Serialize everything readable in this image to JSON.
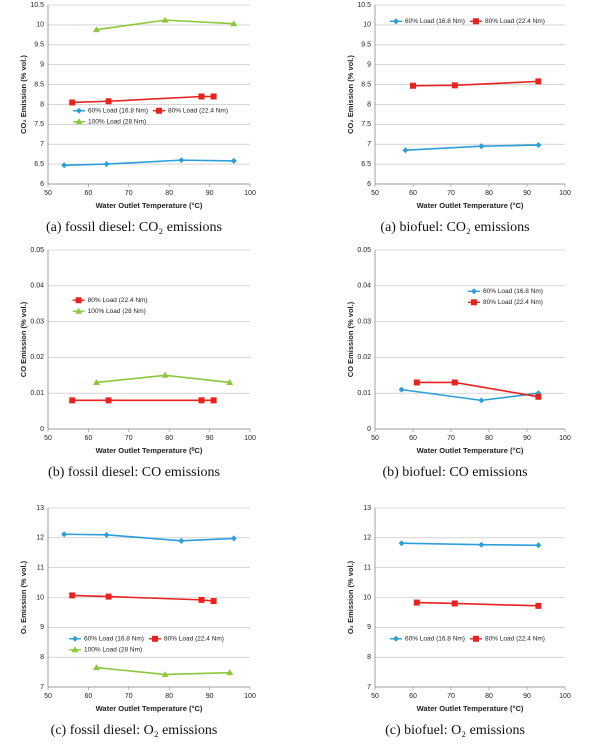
{
  "chart_data": [
    {
      "type": "line",
      "caption": "(a) fossil diesel: CO₂ emissions",
      "xlabel": "Water Outlet Temperature (°C)",
      "ylabel": "CO₂ Emission (% vol.)",
      "xlim": [
        50,
        100
      ],
      "xticks": [
        50,
        60,
        70,
        80,
        90,
        100
      ],
      "ylim": [
        6,
        10.5
      ],
      "yticks": [
        6,
        6.5,
        7,
        7.5,
        8,
        8.5,
        9,
        9.5,
        10,
        10.5
      ],
      "grid": true,
      "legend": "center",
      "legend_columns": 2,
      "series": [
        {
          "name": "60% Load (16.8 Nm)",
          "color": "#2c9fd9",
          "marker": "diamond",
          "x": [
            54,
            64.5,
            83,
            96
          ],
          "values": [
            6.47,
            6.5,
            6.6,
            6.58
          ]
        },
        {
          "name": "80% Load (22.4 Nm)",
          "color": "#e8221f",
          "marker": "square",
          "x": [
            56,
            65,
            88,
            91
          ],
          "values": [
            8.05,
            8.08,
            8.2,
            8.2
          ]
        },
        {
          "name": "100% Load (28 Nm)",
          "color": "#8cc83c",
          "marker": "triangle",
          "x": [
            62,
            79,
            96
          ],
          "values": [
            9.88,
            10.12,
            10.03
          ]
        }
      ]
    },
    {
      "type": "line",
      "caption": "(a) biofuel: CO₂ emissions",
      "xlabel": "Water Outlet Temperature (°C)",
      "ylabel": "CO₂ Emission (% vol.)",
      "xlim": [
        50,
        100
      ],
      "xticks": [
        50,
        60,
        70,
        80,
        90,
        100
      ],
      "ylim": [
        6,
        10.5
      ],
      "yticks": [
        6,
        6.5,
        7,
        7.5,
        8,
        8.5,
        9,
        9.5,
        10,
        10.5
      ],
      "grid": true,
      "legend": "upper center",
      "legend_columns": 2,
      "series": [
        {
          "name": "60% Load (16.8 Nm)",
          "color": "#2c9fd9",
          "marker": "diamond",
          "x": [
            58,
            78,
            93
          ],
          "values": [
            6.85,
            6.95,
            6.98
          ]
        },
        {
          "name": "80% Load (22.4 Nm)",
          "color": "#e8221f",
          "marker": "square",
          "x": [
            60,
            71,
            93
          ],
          "values": [
            8.47,
            8.48,
            8.58
          ]
        }
      ]
    },
    {
      "type": "line",
      "caption": "(b) fossil diesel: CO emissions",
      "xlabel": "Water Outlet Temperature (⁰C)",
      "ylabel": "CO Emission (% vol.)",
      "xlim": [
        50,
        100
      ],
      "xticks": [
        50,
        60,
        70,
        80,
        90,
        100
      ],
      "ylim": [
        0,
        0.05
      ],
      "yticks": [
        0,
        0.01,
        0.02,
        0.03,
        0.04,
        0.05
      ],
      "grid": true,
      "legend": "upper left",
      "legend_columns": 1,
      "series": [
        {
          "name": "80% Load (22.4 Nm)",
          "color": "#e8221f",
          "marker": "square",
          "x": [
            56,
            65,
            88,
            91
          ],
          "values": [
            0.008,
            0.008,
            0.008,
            0.008
          ]
        },
        {
          "name": "100% Load (28 Nm)",
          "color": "#8cc83c",
          "marker": "triangle",
          "x": [
            62,
            79,
            95
          ],
          "values": [
            0.013,
            0.015,
            0.013
          ]
        }
      ]
    },
    {
      "type": "line",
      "caption": "(b) biofuel: CO emissions",
      "xlabel": "Water Outlet Temperature (°C)",
      "ylabel": "CO Emission (% vol.)",
      "xlim": [
        50,
        100
      ],
      "xticks": [
        50,
        60,
        70,
        80,
        90,
        100
      ],
      "ylim": [
        0,
        0.05
      ],
      "yticks": [
        0,
        0.01,
        0.02,
        0.03,
        0.04,
        0.05
      ],
      "grid": true,
      "legend": "upper right",
      "legend_columns": 1,
      "series": [
        {
          "name": "60% Load (16.8 Nm)",
          "color": "#2c9fd9",
          "marker": "diamond",
          "x": [
            57,
            78,
            93
          ],
          "values": [
            0.011,
            0.008,
            0.01
          ]
        },
        {
          "name": "80% Load (22.4 Nm)",
          "color": "#e8221f",
          "marker": "square",
          "x": [
            61,
            71,
            93
          ],
          "values": [
            0.013,
            0.013,
            0.009
          ]
        }
      ]
    },
    {
      "type": "line",
      "caption": "(c) fossil diesel:  O₂ emissions",
      "xlabel": "Water Outlet Temperature (°C)",
      "ylabel": "O₂ Emission (% vol.)",
      "xlim": [
        50,
        100
      ],
      "xticks": [
        50,
        60,
        70,
        80,
        90,
        100
      ],
      "ylim": [
        7,
        13
      ],
      "yticks": [
        7,
        8,
        9,
        10,
        11,
        12,
        13
      ],
      "grid": true,
      "legend": "lower center",
      "legend_columns": 2,
      "series": [
        {
          "name": "60% Load (16.8 Nm)",
          "color": "#2c9fd9",
          "marker": "diamond",
          "x": [
            54,
            64.5,
            83,
            96
          ],
          "values": [
            12.12,
            12.1,
            11.9,
            11.98
          ]
        },
        {
          "name": "80% Load (22.4 Nm)",
          "color": "#e8221f",
          "marker": "square",
          "x": [
            56,
            65,
            88,
            91
          ],
          "values": [
            10.07,
            10.03,
            9.92,
            9.88
          ]
        },
        {
          "name": "100% Load (28 Nm)",
          "color": "#8cc83c",
          "marker": "triangle",
          "x": [
            62,
            79,
            95
          ],
          "values": [
            7.65,
            7.42,
            7.48
          ]
        }
      ]
    },
    {
      "type": "line",
      "caption": "(c) biofuel: O₂ emissions",
      "xlabel": "Water Outlet Temperature (°C)",
      "ylabel": "O₂ Emission (% vol.)",
      "xlim": [
        50,
        100
      ],
      "xticks": [
        50,
        60,
        70,
        80,
        90,
        100
      ],
      "ylim": [
        7,
        13
      ],
      "yticks": [
        7,
        8,
        9,
        10,
        11,
        12,
        13
      ],
      "grid": true,
      "legend": "lower center",
      "legend_columns": 2,
      "series": [
        {
          "name": "60% Load (16.8 Nm)",
          "color": "#2c9fd9",
          "marker": "diamond",
          "x": [
            57,
            78,
            93
          ],
          "values": [
            11.82,
            11.77,
            11.75
          ]
        },
        {
          "name": "80% Load (22.4 Nm)",
          "color": "#e8221f",
          "marker": "square",
          "x": [
            61,
            71,
            93
          ],
          "values": [
            9.83,
            9.8,
            9.72
          ]
        }
      ]
    }
  ]
}
